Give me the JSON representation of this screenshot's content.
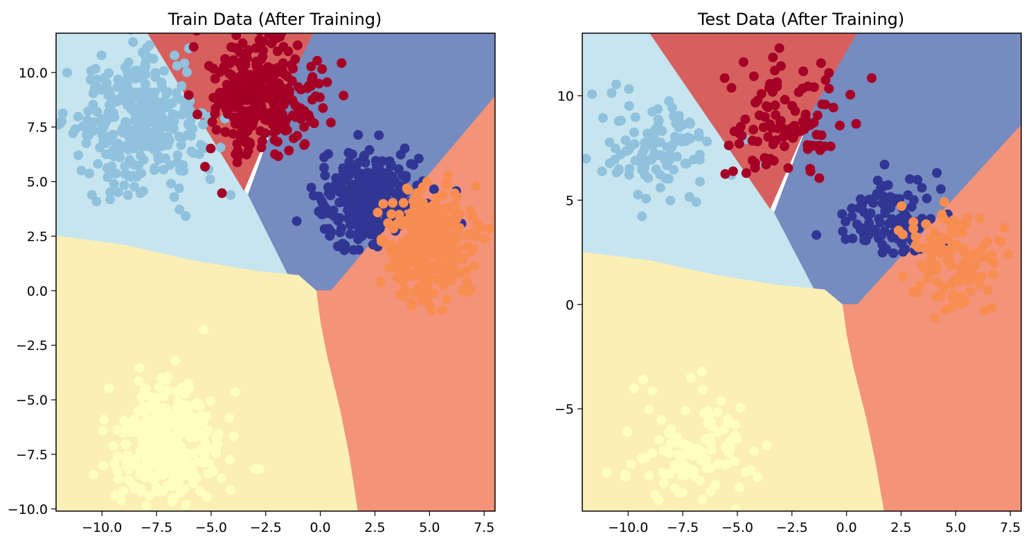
{
  "colors": {
    "region_light_blue": "#c6e5ef",
    "region_red": "#d7605f",
    "region_blue": "#768bc0",
    "region_salmon": "#f3937a",
    "region_yellow": "#fcefb5",
    "cluster_light_blue": "#90c1dd",
    "cluster_red": "#a50026",
    "cluster_navy": "#313695",
    "cluster_orange": "#f88d52",
    "cluster_yellow": "#ffffbf"
  },
  "chart_data": [
    {
      "type": "scatter",
      "title": "Train Data (After Training)",
      "xlabel": "",
      "ylabel": "",
      "xlim": [
        -12.1,
        8.0
      ],
      "ylim": [
        -10.1,
        11.8
      ],
      "xticks": [
        -10.0,
        -7.5,
        -5.0,
        -2.5,
        0.0,
        2.5,
        5.0,
        7.5
      ],
      "xtick_labels": [
        "−10.0",
        "−7.5",
        "−5.0",
        "−2.5",
        "0.0",
        "2.5",
        "5.0",
        "7.5"
      ],
      "yticks": [
        -10.0,
        -7.5,
        -5.0,
        -2.5,
        0.0,
        2.5,
        5.0,
        7.5,
        10.0
      ],
      "ytick_labels": [
        "−10.0",
        "−7.5",
        "−5.0",
        "−2.5",
        "0.0",
        "2.5",
        "5.0",
        "7.5",
        "10.0"
      ],
      "grid": false,
      "regions": [
        {
          "color": "region_light_blue",
          "polygon": [
            [
              -12.1,
              11.8
            ],
            [
              -7.9,
              11.8
            ],
            [
              -3.5,
              4.6
            ],
            [
              -3.3,
              4.4
            ],
            [
              -1.5,
              0.8
            ],
            [
              -0.2,
              0.0
            ],
            [
              -1.0,
              0.7
            ],
            [
              -3.0,
              0.9
            ],
            [
              -6.0,
              1.4
            ],
            [
              -9.0,
              2.1
            ],
            [
              -12.1,
              2.5
            ]
          ]
        },
        {
          "color": "region_red",
          "polygon": [
            [
              -7.9,
              11.8
            ],
            [
              -0.3,
              11.8
            ],
            [
              -1.5,
              9.4
            ],
            [
              -3.5,
              4.6
            ]
          ]
        },
        {
          "color": "region_blue",
          "polygon": [
            [
              -0.3,
              11.8
            ],
            [
              8.0,
              11.8
            ],
            [
              8.0,
              8.9
            ],
            [
              0.5,
              0.0
            ],
            [
              -0.2,
              0.0
            ],
            [
              -1.5,
              0.8
            ],
            [
              -3.3,
              4.4
            ],
            [
              -1.5,
              9.4
            ]
          ]
        },
        {
          "color": "region_salmon",
          "polygon": [
            [
              8.0,
              8.9
            ],
            [
              0.5,
              0.0
            ],
            [
              -0.2,
              0.0
            ],
            [
              0.0,
              -1.5
            ],
            [
              0.3,
              -3.0
            ],
            [
              0.9,
              -5.5
            ],
            [
              1.3,
              -7.5
            ],
            [
              1.7,
              -10.1
            ],
            [
              8.0,
              -10.1
            ]
          ]
        },
        {
          "color": "region_yellow",
          "polygon": [
            [
              -12.1,
              2.5
            ],
            [
              -9.0,
              2.1
            ],
            [
              -6.0,
              1.4
            ],
            [
              -3.0,
              0.9
            ],
            [
              -1.0,
              0.7
            ],
            [
              -0.2,
              0.0
            ],
            [
              0.0,
              -1.5
            ],
            [
              0.3,
              -3.0
            ],
            [
              0.9,
              -5.5
            ],
            [
              1.3,
              -7.5
            ],
            [
              1.7,
              -10.1
            ],
            [
              -12.1,
              -10.1
            ]
          ]
        }
      ],
      "clusters": [
        {
          "color": "cluster_light_blue",
          "center": [
            -8.5,
            7.5
          ],
          "spread": [
            1.5,
            1.5
          ],
          "count": 320
        },
        {
          "color": "cluster_red",
          "center": [
            -2.7,
            9.0
          ],
          "spread": [
            1.2,
            1.3
          ],
          "count": 320
        },
        {
          "color": "cluster_navy",
          "center": [
            2.2,
            4.2
          ],
          "spread": [
            1.2,
            1.0
          ],
          "count": 320
        },
        {
          "color": "cluster_orange",
          "center": [
            5.0,
            2.0
          ],
          "spread": [
            1.0,
            1.3
          ],
          "count": 320
        },
        {
          "color": "cluster_yellow",
          "center": [
            -7.0,
            -7.0
          ],
          "spread": [
            1.3,
            1.3
          ],
          "count": 320
        }
      ]
    },
    {
      "type": "scatter",
      "title": "Test Data (After Training)",
      "xlabel": "",
      "ylabel": "",
      "xlim": [
        -12.1,
        8.0
      ],
      "ylim": [
        -9.9,
        13.0
      ],
      "xticks": [
        -10.0,
        -7.5,
        -5.0,
        -2.5,
        0.0,
        2.5,
        5.0,
        7.5
      ],
      "xtick_labels": [
        "−10.0",
        "−7.5",
        "−5.0",
        "−2.5",
        "0.0",
        "2.5",
        "5.0",
        "7.5"
      ],
      "yticks": [
        -5,
        0,
        5,
        10
      ],
      "ytick_labels": [
        "−5",
        "0",
        "5",
        "10"
      ],
      "grid": false,
      "regions": [
        {
          "color": "region_light_blue",
          "polygon": [
            [
              -12.1,
              13.0
            ],
            [
              -9.0,
              13.0
            ],
            [
              -3.5,
              4.6
            ],
            [
              -3.3,
              4.4
            ],
            [
              -1.5,
              0.8
            ],
            [
              -0.2,
              0.0
            ],
            [
              -1.0,
              0.7
            ],
            [
              -3.0,
              0.9
            ],
            [
              -6.0,
              1.4
            ],
            [
              -9.0,
              2.1
            ],
            [
              -12.1,
              2.5
            ]
          ]
        },
        {
          "color": "region_red",
          "polygon": [
            [
              -9.0,
              13.0
            ],
            [
              0.5,
              13.0
            ],
            [
              -1.5,
              9.4
            ],
            [
              -3.5,
              4.6
            ]
          ]
        },
        {
          "color": "region_blue",
          "polygon": [
            [
              0.5,
              13.0
            ],
            [
              8.0,
              13.0
            ],
            [
              8.0,
              8.6
            ],
            [
              0.5,
              0.0
            ],
            [
              -0.2,
              0.0
            ],
            [
              -1.5,
              0.8
            ],
            [
              -3.3,
              4.4
            ],
            [
              -1.5,
              9.4
            ]
          ]
        },
        {
          "color": "region_salmon",
          "polygon": [
            [
              8.0,
              8.6
            ],
            [
              0.5,
              0.0
            ],
            [
              -0.2,
              0.0
            ],
            [
              0.0,
              -1.5
            ],
            [
              0.3,
              -3.0
            ],
            [
              0.9,
              -5.5
            ],
            [
              1.3,
              -7.5
            ],
            [
              1.7,
              -9.9
            ],
            [
              8.0,
              -9.9
            ]
          ]
        },
        {
          "color": "region_yellow",
          "polygon": [
            [
              -12.1,
              2.5
            ],
            [
              -9.0,
              2.1
            ],
            [
              -6.0,
              1.4
            ],
            [
              -3.0,
              0.9
            ],
            [
              -1.0,
              0.7
            ],
            [
              -0.2,
              0.0
            ],
            [
              0.0,
              -1.5
            ],
            [
              0.3,
              -3.0
            ],
            [
              0.9,
              -5.5
            ],
            [
              1.3,
              -7.5
            ],
            [
              1.7,
              -9.9
            ],
            [
              -12.1,
              -9.9
            ]
          ]
        }
      ],
      "clusters": [
        {
          "color": "cluster_light_blue",
          "center": [
            -8.5,
            7.3
          ],
          "spread": [
            1.4,
            1.3
          ],
          "count": 110
        },
        {
          "color": "cluster_red",
          "center": [
            -2.7,
            9.0
          ],
          "spread": [
            1.3,
            1.3
          ],
          "count": 110
        },
        {
          "color": "cluster_navy",
          "center": [
            2.0,
            4.2
          ],
          "spread": [
            1.1,
            1.0
          ],
          "count": 110
        },
        {
          "color": "cluster_orange",
          "center": [
            4.7,
            2.2
          ],
          "spread": [
            1.1,
            1.3
          ],
          "count": 110
        },
        {
          "color": "cluster_yellow",
          "center": [
            -7.0,
            -7.0
          ],
          "spread": [
            1.4,
            1.3
          ],
          "count": 110
        }
      ]
    }
  ]
}
